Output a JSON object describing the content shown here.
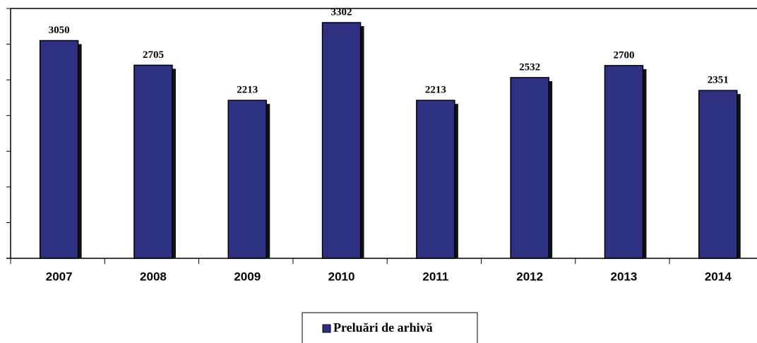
{
  "chart_data": {
    "type": "bar",
    "categories": [
      "2007",
      "2008",
      "2009",
      "2010",
      "2011",
      "2012",
      "2013",
      "2014"
    ],
    "series": [
      {
        "name": "Preluări de arhivă",
        "color": "#2e3182",
        "values": [
          3050,
          2705,
          2213,
          3302,
          2213,
          2532,
          2700,
          2351
        ]
      }
    ],
    "ylim": [
      0,
      3500
    ],
    "yticks": [
      0,
      500,
      1000,
      1500,
      2000,
      2500,
      3000,
      3500
    ]
  }
}
